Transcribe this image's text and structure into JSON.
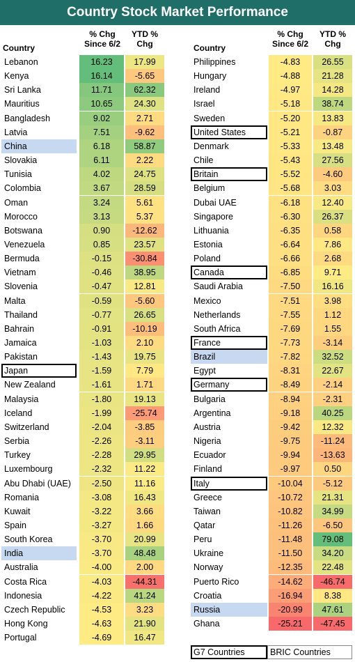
{
  "title": "Country Stock Market Performance",
  "headers": {
    "country": "Country",
    "chg_line1": "% Chg",
    "chg_line2": "Since 6/2",
    "ytd_line1": "YTD %",
    "ytd_line2": "Chg"
  },
  "legend": {
    "g7": "G7 Countries",
    "bric": "BRIC Countries"
  },
  "colors": {
    "title_bg": "#1f6f68",
    "bric_fill": "#c6d9f1",
    "high": "#63be7b",
    "mid": "#ffeb84",
    "low": "#f8696b"
  },
  "chart_data": {
    "type": "table",
    "title": "Country Stock Market Performance",
    "columns": [
      "Country",
      "% Chg Since 6/2",
      "YTD % Chg"
    ],
    "left": [
      {
        "country": "Lebanon",
        "chg": "16.23",
        "ytd": "17.99",
        "group": ""
      },
      {
        "country": "Kenya",
        "chg": "16.14",
        "ytd": "-5.65",
        "group": ""
      },
      {
        "country": "Sri Lanka",
        "chg": "11.71",
        "ytd": "62.32",
        "group": ""
      },
      {
        "country": "Mauritius",
        "chg": "10.65",
        "ytd": "24.30",
        "group": ""
      },
      {
        "country": "Bangladesh",
        "chg": "9.02",
        "ytd": "2.71",
        "group": ""
      },
      {
        "country": "Latvia",
        "chg": "7.51",
        "ytd": "-9.62",
        "group": ""
      },
      {
        "country": "China",
        "chg": "6.18",
        "ytd": "58.87",
        "group": "bric"
      },
      {
        "country": "Slovakia",
        "chg": "6.11",
        "ytd": "2.22",
        "group": ""
      },
      {
        "country": "Tunisia",
        "chg": "4.02",
        "ytd": "24.75",
        "group": ""
      },
      {
        "country": "Colombia",
        "chg": "3.67",
        "ytd": "28.59",
        "group": ""
      },
      {
        "country": "Oman",
        "chg": "3.24",
        "ytd": "5.61",
        "group": ""
      },
      {
        "country": "Morocco",
        "chg": "3.13",
        "ytd": "5.37",
        "group": ""
      },
      {
        "country": "Botswana",
        "chg": "0.90",
        "ytd": "-12.62",
        "group": ""
      },
      {
        "country": "Venezuela",
        "chg": "0.85",
        "ytd": "23.57",
        "group": ""
      },
      {
        "country": "Bermuda",
        "chg": "-0.15",
        "ytd": "-30.84",
        "group": ""
      },
      {
        "country": "Vietnam",
        "chg": "-0.46",
        "ytd": "38.95",
        "group": ""
      },
      {
        "country": "Slovenia",
        "chg": "-0.47",
        "ytd": "12.81",
        "group": ""
      },
      {
        "country": "Malta",
        "chg": "-0.59",
        "ytd": "-5.60",
        "group": ""
      },
      {
        "country": "Thailand",
        "chg": "-0.77",
        "ytd": "26.65",
        "group": ""
      },
      {
        "country": "Bahrain",
        "chg": "-0.91",
        "ytd": "-10.19",
        "group": ""
      },
      {
        "country": "Jamaica",
        "chg": "-1.03",
        "ytd": "2.10",
        "group": ""
      },
      {
        "country": "Pakistan",
        "chg": "-1.43",
        "ytd": "19.75",
        "group": ""
      },
      {
        "country": "Japan",
        "chg": "-1.59",
        "ytd": "7.79",
        "group": "g7"
      },
      {
        "country": "New Zealand",
        "chg": "-1.61",
        "ytd": "1.71",
        "group": ""
      },
      {
        "country": "Malaysia",
        "chg": "-1.80",
        "ytd": "19.13",
        "group": ""
      },
      {
        "country": "Iceland",
        "chg": "-1.99",
        "ytd": "-25.74",
        "group": ""
      },
      {
        "country": "Switzerland",
        "chg": "-2.04",
        "ytd": "-3.85",
        "group": ""
      },
      {
        "country": "Serbia",
        "chg": "-2.26",
        "ytd": "-3.11",
        "group": ""
      },
      {
        "country": "Turkey",
        "chg": "-2.28",
        "ytd": "29.95",
        "group": ""
      },
      {
        "country": "Luxembourg",
        "chg": "-2.32",
        "ytd": "11.22",
        "group": ""
      },
      {
        "country": "Abu Dhabi (UAE)",
        "chg": "-2.50",
        "ytd": "11.16",
        "group": ""
      },
      {
        "country": "Romania",
        "chg": "-3.08",
        "ytd": "16.43",
        "group": ""
      },
      {
        "country": "Kuwait",
        "chg": "-3.22",
        "ytd": "3.66",
        "group": ""
      },
      {
        "country": "Spain",
        "chg": "-3.27",
        "ytd": "1.66",
        "group": ""
      },
      {
        "country": "South Korea",
        "chg": "-3.70",
        "ytd": "20.99",
        "group": ""
      },
      {
        "country": "India",
        "chg": "-3.70",
        "ytd": "48.48",
        "group": "bric"
      },
      {
        "country": "Australia",
        "chg": "-4.00",
        "ytd": "2.00",
        "group": ""
      },
      {
        "country": "Costa Rica",
        "chg": "-4.03",
        "ytd": "-44.31",
        "group": ""
      },
      {
        "country": "Indonesia",
        "chg": "-4.22",
        "ytd": "41.24",
        "group": ""
      },
      {
        "country": "Czech Republic",
        "chg": "-4.53",
        "ytd": "3.23",
        "group": ""
      },
      {
        "country": "Hong Kong",
        "chg": "-4.63",
        "ytd": "21.90",
        "group": ""
      },
      {
        "country": "Portugal",
        "chg": "-4.69",
        "ytd": "16.47",
        "group": ""
      }
    ],
    "right": [
      {
        "country": "Philippines",
        "chg": "-4.83",
        "ytd": "26.55",
        "group": ""
      },
      {
        "country": "Hungary",
        "chg": "-4.88",
        "ytd": "21.28",
        "group": ""
      },
      {
        "country": "Ireland",
        "chg": "-4.97",
        "ytd": "14.28",
        "group": ""
      },
      {
        "country": "Israel",
        "chg": "-5.18",
        "ytd": "38.74",
        "group": ""
      },
      {
        "country": "Sweden",
        "chg": "-5.20",
        "ytd": "13.83",
        "group": ""
      },
      {
        "country": "United States",
        "chg": "-5.21",
        "ytd": "-0.87",
        "group": "g7"
      },
      {
        "country": "Denmark",
        "chg": "-5.33",
        "ytd": "13.48",
        "group": ""
      },
      {
        "country": "Chile",
        "chg": "-5.43",
        "ytd": "27.56",
        "group": ""
      },
      {
        "country": "Britain",
        "chg": "-5.52",
        "ytd": "-4.60",
        "group": "g7"
      },
      {
        "country": "Belgium",
        "chg": "-5.68",
        "ytd": "3.03",
        "group": ""
      },
      {
        "country": "Dubai UAE",
        "chg": "-6.18",
        "ytd": "12.40",
        "group": ""
      },
      {
        "country": "Singapore",
        "chg": "-6.30",
        "ytd": "26.37",
        "group": ""
      },
      {
        "country": "Lithuania",
        "chg": "-6.35",
        "ytd": "0.58",
        "group": ""
      },
      {
        "country": "Estonia",
        "chg": "-6.64",
        "ytd": "7.86",
        "group": ""
      },
      {
        "country": "Poland",
        "chg": "-6.66",
        "ytd": "2.68",
        "group": ""
      },
      {
        "country": "Canada",
        "chg": "-6.85",
        "ytd": "9.71",
        "group": "g7"
      },
      {
        "country": "Saudi Arabia",
        "chg": "-7.50",
        "ytd": "16.16",
        "group": ""
      },
      {
        "country": "Mexico",
        "chg": "-7.51",
        "ytd": "3.98",
        "group": ""
      },
      {
        "country": "Netherlands",
        "chg": "-7.55",
        "ytd": "1.12",
        "group": ""
      },
      {
        "country": "South Africa",
        "chg": "-7.69",
        "ytd": "1.55",
        "group": ""
      },
      {
        "country": "France",
        "chg": "-7.73",
        "ytd": "-3.14",
        "group": "g7"
      },
      {
        "country": "Brazil",
        "chg": "-7.82",
        "ytd": "32.52",
        "group": "bric"
      },
      {
        "country": "Egypt",
        "chg": "-8.31",
        "ytd": "22.67",
        "group": ""
      },
      {
        "country": "Germany",
        "chg": "-8.49",
        "ytd": "-2.14",
        "group": "g7"
      },
      {
        "country": "Bulgaria",
        "chg": "-8.94",
        "ytd": "-2.31",
        "group": ""
      },
      {
        "country": "Argentina",
        "chg": "-9.18",
        "ytd": "40.25",
        "group": ""
      },
      {
        "country": "Austria",
        "chg": "-9.42",
        "ytd": "12.32",
        "group": ""
      },
      {
        "country": "Nigeria",
        "chg": "-9.75",
        "ytd": "-11.24",
        "group": ""
      },
      {
        "country": "Ecuador",
        "chg": "-9.94",
        "ytd": "-13.63",
        "group": ""
      },
      {
        "country": "Finland",
        "chg": "-9.97",
        "ytd": "0.50",
        "group": ""
      },
      {
        "country": "Italy",
        "chg": "-10.04",
        "ytd": "-5.12",
        "group": "g7"
      },
      {
        "country": "Greece",
        "chg": "-10.72",
        "ytd": "21.31",
        "group": ""
      },
      {
        "country": "Taiwan",
        "chg": "-10.82",
        "ytd": "34.99",
        "group": ""
      },
      {
        "country": "Qatar",
        "chg": "-11.26",
        "ytd": "-6.50",
        "group": ""
      },
      {
        "country": "Peru",
        "chg": "-11.48",
        "ytd": "79.08",
        "group": ""
      },
      {
        "country": "Ukraine",
        "chg": "-11.50",
        "ytd": "34.20",
        "group": ""
      },
      {
        "country": "Norway",
        "chg": "-12.35",
        "ytd": "22.48",
        "group": ""
      },
      {
        "country": "Puerto Rico",
        "chg": "-14.62",
        "ytd": "-46.74",
        "group": ""
      },
      {
        "country": "Croatia",
        "chg": "-16.94",
        "ytd": "8.38",
        "group": ""
      },
      {
        "country": "Russia",
        "chg": "-20.99",
        "ytd": "47.61",
        "group": "bric"
      },
      {
        "country": "Ghana",
        "chg": "-25.21",
        "ytd": "-47.45",
        "group": ""
      }
    ]
  }
}
